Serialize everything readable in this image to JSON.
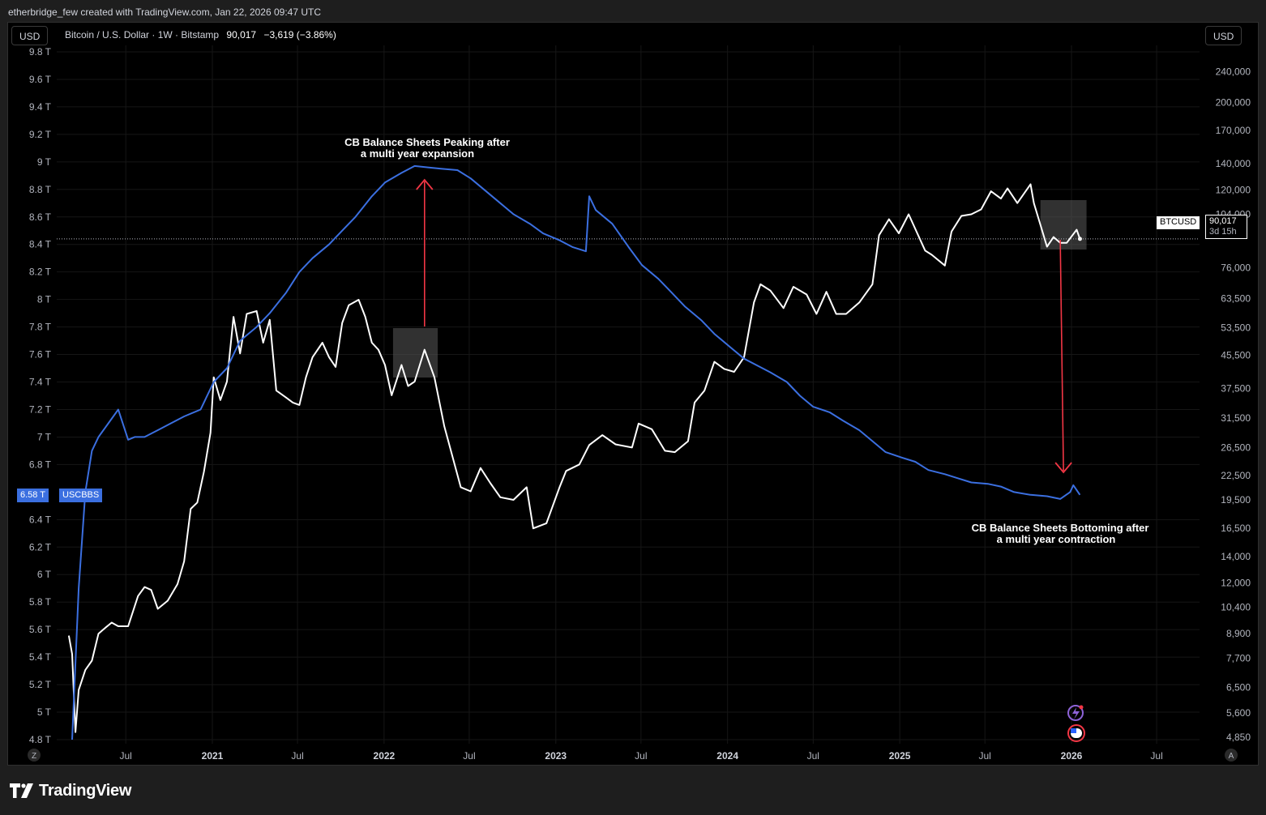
{
  "header": {
    "attribution": "etherbridge_few created with TradingView.com, Jan 22, 2026 09:47 UTC"
  },
  "toolbar": {
    "left_currency": "USD",
    "right_currency": "USD"
  },
  "legend": {
    "symbol": "Bitcoin / U.S. Dollar · 1W · Bitstamp",
    "price": "90,017",
    "change": "−3,619 (−3.86%)"
  },
  "price_tags": {
    "btc_symbol": "BTCUSD",
    "btc_price": "90,017",
    "btc_countdown": "3d 15h",
    "cb_value": "6.58 T",
    "cb_symbol": "USCBBS"
  },
  "axis_buttons": {
    "left": "Z",
    "right": "A"
  },
  "annotations": {
    "top_line1": "CB Balance Sheets Peaking after",
    "top_line2": "a multi year expansion",
    "bottom_line1": "CB Balance Sheets Bottoming after",
    "bottom_line2": "a multi year contraction"
  },
  "footer": {
    "brand": "TradingView"
  },
  "colors": {
    "background": "#000000",
    "btc_line": "#ffffff",
    "cb_line": "#3b6fe0",
    "arrow": "#f23645",
    "highlight_box": "#5a5a5a",
    "grid": "#161616"
  },
  "chart_data": {
    "type": "line",
    "x_tick_labels": [
      "Jul",
      "2021",
      "Jul",
      "2022",
      "Jul",
      "2023",
      "Jul",
      "2024",
      "Jul",
      "2025",
      "Jul",
      "2026",
      "Jul"
    ],
    "x_tick_dates": [
      "2020-07-01",
      "2021-01-01",
      "2021-07-01",
      "2022-01-01",
      "2022-07-01",
      "2023-01-01",
      "2023-07-01",
      "2024-01-01",
      "2024-07-01",
      "2025-01-01",
      "2025-07-01",
      "2026-01-01",
      "2026-07-01"
    ],
    "left_axis": {
      "scale": "linear",
      "range": [
        4.8,
        9.8
      ],
      "tick_values": [
        4.8,
        5,
        5.2,
        5.4,
        5.6,
        5.8,
        6,
        6.2,
        6.4,
        6.8,
        7,
        7.2,
        7.4,
        7.6,
        7.8,
        8,
        8.2,
        8.4,
        8.6,
        8.8,
        9,
        9.2,
        9.4,
        9.6,
        9.8
      ],
      "tick_labels": [
        "4.8 T",
        "5 T",
        "5.2 T",
        "5.4 T",
        "5.6 T",
        "5.8 T",
        "6 T",
        "6.2 T",
        "6.4 T",
        "6.8 T",
        "7 T",
        "7.2 T",
        "7.4 T",
        "7.6 T",
        "7.8 T",
        "8 T",
        "8.2 T",
        "8.4 T",
        "8.6 T",
        "8.8 T",
        "9 T",
        "9.2 T",
        "9.4 T",
        "9.6 T",
        "9.8 T"
      ]
    },
    "right_axis": {
      "scale": "log",
      "range": [
        4350,
        245000
      ],
      "tick_values": [
        4850,
        5600,
        6500,
        7700,
        8900,
        10400,
        12000,
        14000,
        16500,
        19500,
        22500,
        26500,
        31500,
        37500,
        45500,
        53500,
        63500,
        76000,
        104000,
        120000,
        140000,
        170000,
        200000,
        240000
      ],
      "tick_labels": [
        "4,850",
        "5,600",
        "6,500",
        "7,700",
        "8,900",
        "10,400",
        "12,000",
        "14,000",
        "16,500",
        "19,500",
        "22,500",
        "26,500",
        "31,500",
        "37,500",
        "45,500",
        "53,500",
        "63,500",
        "76,000",
        "104,000",
        "120,000",
        "140,000",
        "170,000",
        "200,000",
        "240,000"
      ]
    },
    "current_price_line": 90017,
    "series": [
      {
        "name": "BTCUSD",
        "axis": "right",
        "x": [
          "2020-03-02",
          "2020-03-09",
          "2020-03-16",
          "2020-03-23",
          "2020-04-06",
          "2020-04-20",
          "2020-05-04",
          "2020-05-18",
          "2020-06-01",
          "2020-06-15",
          "2020-07-06",
          "2020-07-27",
          "2020-08-10",
          "2020-08-24",
          "2020-09-07",
          "2020-09-28",
          "2020-10-19",
          "2020-11-02",
          "2020-11-16",
          "2020-11-30",
          "2020-12-14",
          "2020-12-28",
          "2021-01-04",
          "2021-01-18",
          "2021-02-01",
          "2021-02-15",
          "2021-03-01",
          "2021-03-15",
          "2021-04-05",
          "2021-04-19",
          "2021-05-03",
          "2021-05-17",
          "2021-06-07",
          "2021-06-21",
          "2021-07-05",
          "2021-07-19",
          "2021-08-02",
          "2021-08-23",
          "2021-09-06",
          "2021-09-20",
          "2021-10-04",
          "2021-10-18",
          "2021-11-08",
          "2021-11-22",
          "2021-12-06",
          "2021-12-20",
          "2022-01-03",
          "2022-01-17",
          "2022-02-07",
          "2022-02-21",
          "2022-03-07",
          "2022-03-28",
          "2022-04-18",
          "2022-05-09",
          "2022-06-13",
          "2022-07-04",
          "2022-07-25",
          "2022-08-15",
          "2022-09-05",
          "2022-10-03",
          "2022-10-31",
          "2022-11-14",
          "2022-12-12",
          "2023-01-09",
          "2023-01-23",
          "2023-02-20",
          "2023-03-13",
          "2023-04-10",
          "2023-05-08",
          "2023-06-12",
          "2023-06-26",
          "2023-07-24",
          "2023-08-21",
          "2023-09-11",
          "2023-10-09",
          "2023-10-23",
          "2023-11-13",
          "2023-12-04",
          "2023-12-25",
          "2024-01-15",
          "2024-02-05",
          "2024-02-26",
          "2024-03-11",
          "2024-04-01",
          "2024-04-29",
          "2024-05-20",
          "2024-06-17",
          "2024-07-08",
          "2024-07-29",
          "2024-08-19",
          "2024-09-09",
          "2024-10-07",
          "2024-11-04",
          "2024-11-18",
          "2024-12-09",
          "2024-12-30",
          "2025-01-20",
          "2025-02-24",
          "2025-03-10",
          "2025-04-07",
          "2025-04-21",
          "2025-05-12",
          "2025-06-02",
          "2025-06-23",
          "2025-07-14",
          "2025-08-04",
          "2025-08-18",
          "2025-09-08",
          "2025-10-06",
          "2025-10-13",
          "2025-11-10",
          "2025-11-24",
          "2025-12-08",
          "2025-12-22",
          "2026-01-12",
          "2026-01-19"
        ],
        "y": [
          8800,
          7900,
          5000,
          6400,
          7200,
          7600,
          8900,
          9200,
          9500,
          9300,
          9300,
          11100,
          11700,
          11500,
          10300,
          10800,
          11900,
          13600,
          18500,
          19200,
          23000,
          28900,
          40000,
          35000,
          39000,
          57000,
          46000,
          58000,
          59000,
          49000,
          56000,
          37000,
          35500,
          34500,
          34000,
          40000,
          45000,
          49000,
          45000,
          42500,
          55000,
          61000,
          63000,
          57000,
          49000,
          47000,
          43000,
          36000,
          43000,
          38000,
          39000,
          47000,
          40000,
          30000,
          21000,
          20500,
          23500,
          21500,
          19800,
          19500,
          21000,
          16500,
          17000,
          21000,
          23100,
          24000,
          26900,
          28500,
          27000,
          26500,
          30500,
          29500,
          26000,
          25800,
          27500,
          34500,
          37000,
          43800,
          42000,
          41300,
          45000,
          62000,
          69000,
          66500,
          60000,
          68000,
          65000,
          58000,
          66000,
          58000,
          58000,
          62000,
          69000,
          92000,
          101000,
          93000,
          104000,
          84000,
          82000,
          77000,
          94000,
          103000,
          104000,
          107000,
          119000,
          114000,
          121000,
          111000,
          124000,
          111000,
          86000,
          91000,
          88000,
          88000,
          95000,
          90017
        ]
      },
      {
        "name": "USCBBS",
        "axis": "left",
        "x": [
          "2020-03-09",
          "2020-03-23",
          "2020-04-06",
          "2020-04-20",
          "2020-05-04",
          "2020-05-25",
          "2020-06-15",
          "2020-07-06",
          "2020-07-20",
          "2020-08-10",
          "2020-09-07",
          "2020-10-05",
          "2020-11-02",
          "2020-12-07",
          "2021-01-04",
          "2021-02-01",
          "2021-03-01",
          "2021-04-05",
          "2021-05-03",
          "2021-06-07",
          "2021-07-05",
          "2021-08-02",
          "2021-09-06",
          "2021-10-04",
          "2021-11-01",
          "2021-12-06",
          "2022-01-03",
          "2022-02-07",
          "2022-03-07",
          "2022-04-04",
          "2022-05-02",
          "2022-06-06",
          "2022-07-04",
          "2022-08-01",
          "2022-09-05",
          "2022-10-03",
          "2022-11-07",
          "2022-12-05",
          "2023-01-09",
          "2023-02-06",
          "2023-03-06",
          "2023-03-13",
          "2023-03-27",
          "2023-05-01",
          "2023-06-05",
          "2023-07-03",
          "2023-08-07",
          "2023-09-04",
          "2023-10-02",
          "2023-11-06",
          "2023-12-04",
          "2024-01-08",
          "2024-02-05",
          "2024-03-04",
          "2024-04-01",
          "2024-05-06",
          "2024-06-03",
          "2024-07-01",
          "2024-08-05",
          "2024-09-02",
          "2024-10-07",
          "2024-11-04",
          "2024-12-02",
          "2025-01-06",
          "2025-02-03",
          "2025-03-03",
          "2025-04-07",
          "2025-05-05",
          "2025-06-02",
          "2025-07-07",
          "2025-08-04",
          "2025-09-01",
          "2025-10-06",
          "2025-11-10",
          "2025-12-08",
          "2025-12-29",
          "2026-01-05",
          "2026-01-19"
        ],
        "y": [
          4.8,
          5.9,
          6.6,
          6.9,
          7.0,
          7.1,
          7.2,
          6.98,
          7.0,
          7.0,
          7.05,
          7.1,
          7.15,
          7.2,
          7.4,
          7.5,
          7.7,
          7.8,
          7.9,
          8.05,
          8.2,
          8.3,
          8.4,
          8.5,
          8.6,
          8.75,
          8.85,
          8.92,
          8.97,
          8.96,
          8.95,
          8.94,
          8.88,
          8.8,
          8.7,
          8.62,
          8.55,
          8.48,
          8.43,
          8.38,
          8.35,
          8.75,
          8.65,
          8.55,
          8.38,
          8.25,
          8.15,
          8.05,
          7.95,
          7.85,
          7.75,
          7.65,
          7.57,
          7.52,
          7.47,
          7.4,
          7.3,
          7.22,
          7.18,
          7.12,
          7.05,
          6.97,
          6.89,
          6.85,
          6.82,
          6.76,
          6.73,
          6.7,
          6.67,
          6.66,
          6.64,
          6.6,
          6.58,
          6.57,
          6.55,
          6.6,
          6.65,
          6.58
        ]
      }
    ],
    "highlight_boxes": [
      {
        "from": "2022-01-20",
        "to": "2022-04-25"
      },
      {
        "from": "2025-10-27",
        "to": "2026-02-02"
      }
    ],
    "arrows": [
      {
        "direction": "up",
        "date": "2022-03-28"
      },
      {
        "direction": "down",
        "date": "2025-12-15"
      }
    ]
  }
}
